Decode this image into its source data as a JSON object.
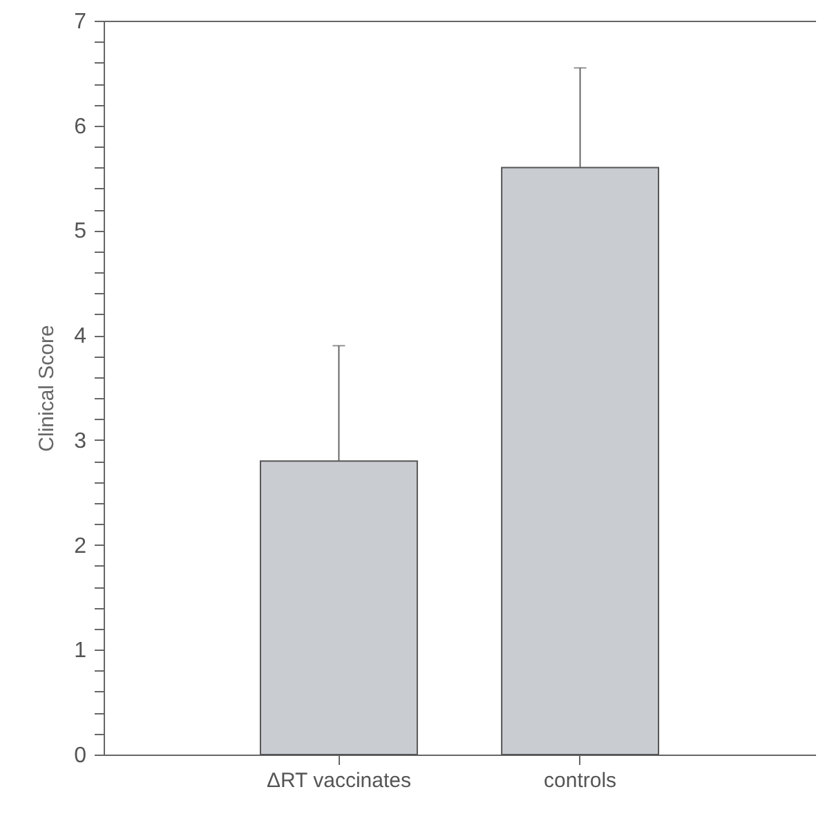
{
  "chart_data": {
    "type": "bar",
    "ylabel": "Clinical Score",
    "categories": [
      "ΔRT vaccinates",
      "controls"
    ],
    "values": [
      2.8,
      5.6
    ],
    "errors": [
      [
        2.8,
        3.9
      ],
      [
        5.6,
        6.55
      ]
    ],
    "color": "#c9ccd1",
    "ylim": [
      0,
      7
    ],
    "yticks": [
      0,
      {
        "value": 0.2,
        "label": null
      },
      {
        "value": 0.4,
        "label": null
      },
      {
        "value": 0.6,
        "label": null
      },
      {
        "value": 0.8,
        "label": null
      },
      1,
      {
        "value": 1.2,
        "label": null
      },
      {
        "value": 1.4,
        "label": null
      },
      {
        "value": 1.6,
        "label": null
      },
      {
        "value": 1.8,
        "label": null
      },
      2,
      {
        "value": 2.2,
        "label": null
      },
      {
        "value": 2.4,
        "label": null
      },
      {
        "value": 2.6,
        "label": null
      },
      {
        "value": 2.8,
        "label": null
      },
      3,
      {
        "value": 3.2,
        "label": null
      },
      {
        "value": 3.4,
        "label": null
      },
      {
        "value": 3.6,
        "label": null
      },
      {
        "value": 3.8,
        "label": null
      },
      4,
      {
        "value": 4.2,
        "label": null
      },
      {
        "value": 4.4,
        "label": null
      },
      {
        "value": 4.6,
        "label": null
      },
      {
        "value": 4.8,
        "label": null
      },
      5,
      {
        "value": 5.2,
        "label": null
      },
      {
        "value": 5.4,
        "label": null
      },
      {
        "value": 5.6,
        "label": null
      },
      {
        "value": 5.8,
        "label": null
      },
      6,
      {
        "value": 6.2,
        "label": null
      },
      {
        "value": 6.4,
        "label": null
      },
      {
        "value": 6.6,
        "label": null
      },
      {
        "value": 6.8,
        "label": null
      },
      7
    ],
    "grid": false
  }
}
